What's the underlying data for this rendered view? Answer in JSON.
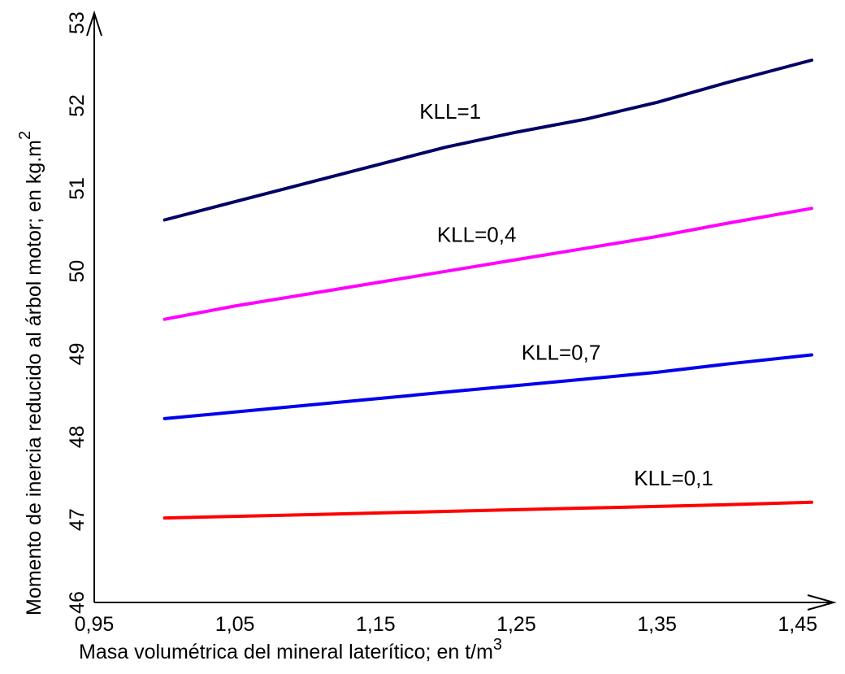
{
  "chart_data": {
    "type": "line",
    "xlabel": "Masa volumétrica del mineral laterítico; en t/m",
    "xlabel_sup": "3",
    "ylabel": "Momento de inercia reducido al árbol motor; en kg.m",
    "ylabel_sup": "2",
    "xlim": [
      0.95,
      1.475
    ],
    "ylim": [
      46,
      53.1
    ],
    "x_ticks": [
      "0,95",
      "1,05",
      "1,15",
      "1,25",
      "1,35",
      "1,45"
    ],
    "y_ticks": [
      "46",
      "47",
      "48",
      "49",
      "50",
      "51",
      "52",
      "53"
    ],
    "x": [
      1.0,
      1.05,
      1.1,
      1.15,
      1.2,
      1.25,
      1.3,
      1.35,
      1.4,
      1.46
    ],
    "series": [
      {
        "name": "KLL=1",
        "color": "#000066",
        "values": [
          50.62,
          50.84,
          51.06,
          51.28,
          51.5,
          51.68,
          51.84,
          52.04,
          52.28,
          52.55
        ]
      },
      {
        "name": "KLL=0,4",
        "color": "#ff00ff",
        "values": [
          49.42,
          49.58,
          49.72,
          49.86,
          50.0,
          50.14,
          50.28,
          50.42,
          50.58,
          50.76
        ]
      },
      {
        "name": "KLL=0,7",
        "color": "#0000ee",
        "values": [
          48.22,
          48.3,
          48.38,
          48.46,
          48.54,
          48.62,
          48.7,
          48.78,
          48.88,
          48.99
        ]
      },
      {
        "name": "KLL=0,1",
        "color": "#ff0000",
        "values": [
          47.02,
          47.04,
          47.06,
          47.08,
          47.1,
          47.12,
          47.14,
          47.16,
          47.18,
          47.21
        ]
      }
    ]
  }
}
